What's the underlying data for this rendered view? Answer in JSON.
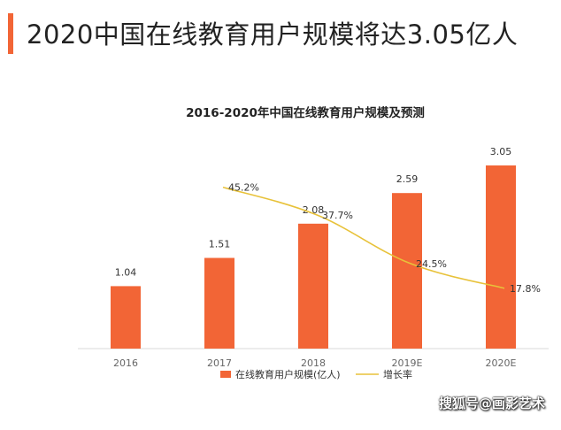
{
  "page": {
    "title": "2020中国在线教育用户规模将达3.05亿人",
    "accent_color": "#f26536"
  },
  "watermark": "搜狐号@画影艺术",
  "chart_data": {
    "type": "bar",
    "title": "2016-2020年中国在线教育用户规模及预测",
    "categories": [
      "2016",
      "2017",
      "2018",
      "2019E",
      "2020E"
    ],
    "series": [
      {
        "name": "在线教育用户规模(亿人)",
        "type": "bar",
        "color": "#f26536",
        "values": [
          1.04,
          1.51,
          2.08,
          2.59,
          3.05
        ],
        "labels": [
          "1.04",
          "1.51",
          "2.08",
          "2.59",
          "3.05"
        ]
      },
      {
        "name": "增长率",
        "type": "line",
        "color": "#e8c23a",
        "values": [
          null,
          45.2,
          37.7,
          24.5,
          17.8
        ],
        "labels": [
          "",
          "45.2%",
          "37.7%",
          "24.5%",
          "17.8%"
        ]
      }
    ],
    "ylim": [
      0,
      3.3
    ],
    "grid": false,
    "legend": "bottom"
  }
}
